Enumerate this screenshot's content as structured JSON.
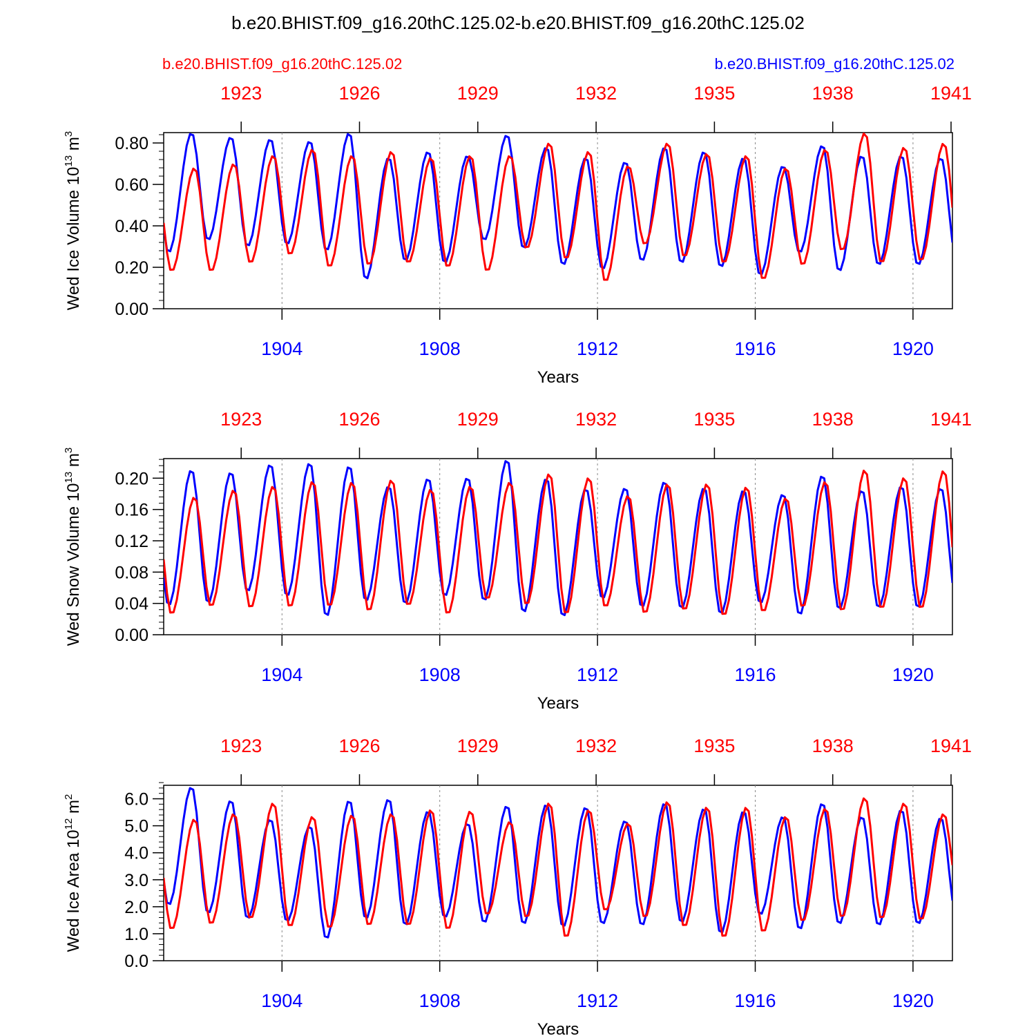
{
  "title": "b.e20.BHIST.f09_g16.20thC.125.02-b.e20.BHIST.f09_g16.20thC.125.02",
  "legend": {
    "red_case": "b.e20.BHIST.f09_g16.20thC.125.02",
    "blue_case": "b.e20.BHIST.f09_g16.20thC.125.02"
  },
  "colors": {
    "case_red": "#ff0000",
    "case_blue": "#0000ff",
    "axis": "#000000"
  },
  "chart_data": [
    {
      "type": "line",
      "ylabel": "Wed Ice Volume 10",
      "ylabel_exp": "13",
      "ylabel_unit": " m",
      "ylabel_unit_exp": "3",
      "xlabel": "Years",
      "ylim": [
        0,
        0.85
      ],
      "yticks": [
        0.0,
        0.2,
        0.4,
        0.6,
        0.8
      ],
      "ytick_labels": [
        "0.00",
        "0.20",
        "0.40",
        "0.60",
        "0.80"
      ],
      "yminor": 0.04,
      "top_xtick_labels": [
        "1923",
        "1926",
        "1929",
        "1932",
        "1935",
        "1938",
        "1941"
      ],
      "bottom_xtick_labels": [
        "1904",
        "1908",
        "1912",
        "1916",
        "1920"
      ],
      "series": [
        {
          "name": "b.e20.BHIST.f09_g16.20thC.125.02 (years 1921-1941)",
          "color": "red",
          "max": [
            0.68,
            0.7,
            0.74,
            0.77,
            0.74,
            0.76,
            0.73,
            0.74,
            0.74,
            0.8,
            0.76,
            0.69,
            0.8,
            0.75,
            0.74,
            0.68,
            0.77,
            0.85,
            0.78,
            0.8
          ],
          "min": [
            0.18,
            0.18,
            0.22,
            0.26,
            0.2,
            0.21,
            0.22,
            0.2,
            0.18,
            0.29,
            0.24,
            0.13,
            0.31,
            0.25,
            0.22,
            0.14,
            0.21,
            0.28,
            0.22,
            0.23
          ]
        },
        {
          "name": "b.e20.BHIST.f09_g16.20thC.125.02 (years 1901-1920)",
          "color": "blue",
          "max": [
            0.85,
            0.83,
            0.82,
            0.81,
            0.85,
            0.73,
            0.76,
            0.74,
            0.84,
            0.78,
            0.73,
            0.71,
            0.78,
            0.76,
            0.73,
            0.69,
            0.79,
            0.74,
            0.74,
            0.73
          ],
          "min": [
            0.27,
            0.33,
            0.3,
            0.31,
            0.28,
            0.14,
            0.23,
            0.22,
            0.33,
            0.29,
            0.21,
            0.19,
            0.23,
            0.22,
            0.2,
            0.16,
            0.27,
            0.18,
            0.21,
            0.21
          ]
        }
      ]
    },
    {
      "type": "line",
      "ylabel": "Wed Snow Volume 10",
      "ylabel_exp": "13",
      "ylabel_unit": " m",
      "ylabel_unit_exp": "3",
      "xlabel": "Years",
      "ylim": [
        0,
        0.225
      ],
      "yticks": [
        0.0,
        0.04,
        0.08,
        0.12,
        0.16,
        0.2
      ],
      "ytick_labels": [
        "0.00",
        "0.04",
        "0.08",
        "0.12",
        "0.16",
        "0.20"
      ],
      "yminor": 0.008,
      "top_xtick_labels": [
        "1923",
        "1926",
        "1929",
        "1932",
        "1935",
        "1938",
        "1941"
      ],
      "bottom_xtick_labels": [
        "1904",
        "1908",
        "1912",
        "1916",
        "1920"
      ],
      "series": [
        {
          "name": "b.e20.BHIST.f09_g16.20thC.125.02 (years 1921-1941)",
          "color": "red",
          "max": [
            0.176,
            0.185,
            0.19,
            0.196,
            0.195,
            0.198,
            0.186,
            0.19,
            0.195,
            0.206,
            0.201,
            0.178,
            0.193,
            0.193,
            0.189,
            0.175,
            0.196,
            0.211,
            0.201,
            0.21
          ],
          "min": [
            0.026,
            0.036,
            0.034,
            0.035,
            0.036,
            0.03,
            0.037,
            0.026,
            0.045,
            0.038,
            0.026,
            0.035,
            0.027,
            0.031,
            0.024,
            0.029,
            0.035,
            0.03,
            0.033,
            0.033
          ]
        },
        {
          "name": "b.e20.BHIST.f09_g16.20thC.125.02 (years 1901-1920)",
          "color": "blue",
          "max": [
            0.211,
            0.208,
            0.218,
            0.22,
            0.216,
            0.19,
            0.2,
            0.201,
            0.224,
            0.2,
            0.187,
            0.188,
            0.196,
            0.188,
            0.185,
            0.18,
            0.204,
            0.185,
            0.19,
            0.188
          ],
          "min": [
            0.037,
            0.04,
            0.055,
            0.049,
            0.023,
            0.043,
            0.039,
            0.049,
            0.043,
            0.028,
            0.023,
            0.046,
            0.035,
            0.033,
            0.026,
            0.04,
            0.025,
            0.032,
            0.034,
            0.034
          ]
        }
      ]
    },
    {
      "type": "line",
      "ylabel": "Wed Ice Area 10",
      "ylabel_exp": "12",
      "ylabel_unit": " m",
      "ylabel_unit_exp": "2",
      "xlabel": "Years",
      "ylim": [
        0,
        6.5
      ],
      "yticks": [
        0,
        1,
        2,
        3,
        4,
        5,
        6
      ],
      "ytick_labels": [
        "0.0",
        "1.0",
        "2.0",
        "3.0",
        "4.0",
        "5.0",
        "6.0"
      ],
      "yminor": 0.2,
      "top_xtick_labels": [
        "1923",
        "1926",
        "1929",
        "1932",
        "1935",
        "1938",
        "1941"
      ],
      "bottom_xtick_labels": [
        "1904",
        "1908",
        "1912",
        "1916",
        "1920"
      ],
      "series": [
        {
          "name": "b.e20.BHIST.f09_g16.20thC.125.02 (years 1921-1941)",
          "color": "red",
          "max": [
            5.25,
            5.45,
            5.85,
            5.35,
            5.4,
            5.45,
            5.6,
            5.55,
            5.15,
            5.85,
            5.6,
            5.1,
            5.9,
            5.7,
            5.7,
            5.35,
            5.65,
            6.05,
            5.85,
            5.45
          ],
          "min": [
            1.15,
            1.35,
            1.55,
            1.25,
            1.2,
            1.3,
            1.3,
            1.15,
            1.7,
            1.6,
            0.85,
            1.85,
            1.6,
            1.25,
            0.85,
            1.05,
            1.45,
            1.6,
            1.55,
            1.5
          ]
        },
        {
          "name": "b.e20.BHIST.f09_g16.20thC.125.02 (years 1901-1920)",
          "color": "blue",
          "max": [
            6.45,
            5.95,
            5.25,
            5.0,
            5.95,
            6.0,
            5.55,
            5.1,
            5.75,
            5.8,
            5.7,
            5.2,
            5.85,
            5.65,
            5.55,
            5.35,
            5.85,
            5.35,
            5.6,
            5.3
          ],
          "min": [
            2.05,
            1.75,
            1.55,
            1.45,
            0.8,
            1.55,
            1.3,
            1.6,
            1.4,
            1.35,
            1.25,
            1.35,
            1.3,
            1.4,
            1.0,
            1.7,
            1.15,
            1.35,
            1.3,
            1.35
          ]
        }
      ]
    }
  ]
}
